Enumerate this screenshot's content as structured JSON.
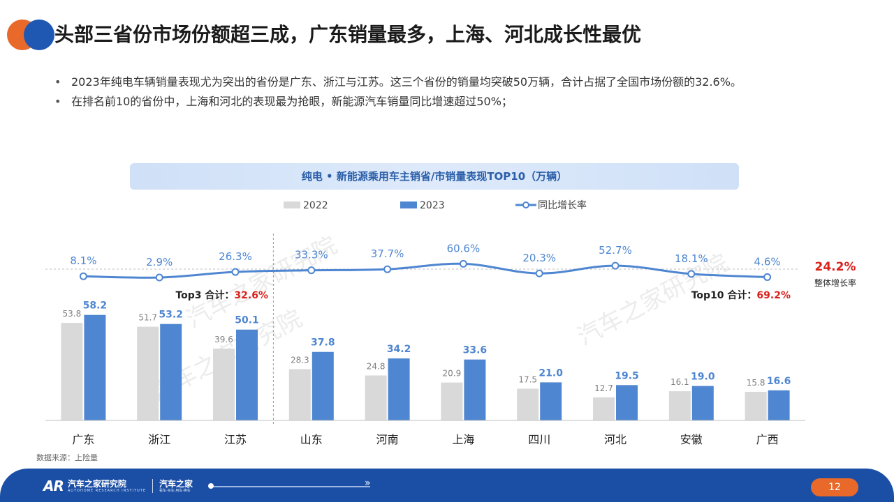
{
  "header": {
    "title": "头部三省份市场份额超三成，广东销量最多，上海、河北成长性最优"
  },
  "bullets": [
    "2023年纯电车辆销量表现尤为突出的省份是广东、浙江与江苏。这三个省份的销量均突破50万辆，合计占据了全国市场份额的32.6%。",
    "在排名前10的省份中，上海和河北的表现最为抢眼，新能源汽车销量同比增速超过50%；"
  ],
  "chart_data": {
    "type": "bar",
    "title": "纯电 • 新能源乘用车主销省/市销量表现TOP10（万辆）",
    "categories": [
      "广东",
      "浙江",
      "江苏",
      "山东",
      "河南",
      "上海",
      "四川",
      "河北",
      "安徽",
      "广西"
    ],
    "series": [
      {
        "name": "2022",
        "type": "bar",
        "color": "#d9d9d9",
        "values": [
          53.8,
          51.7,
          39.6,
          28.3,
          24.8,
          20.9,
          17.5,
          12.7,
          16.1,
          15.8
        ]
      },
      {
        "name": "2023",
        "type": "bar",
        "color": "#4f86d1",
        "values": [
          58.2,
          53.2,
          50.1,
          37.8,
          34.2,
          33.6,
          21.0,
          19.5,
          19.0,
          16.6
        ]
      },
      {
        "name": "同比增长率",
        "type": "line",
        "color": "#4f86d1",
        "values": [
          8.1,
          2.9,
          26.3,
          33.3,
          37.7,
          60.6,
          20.3,
          52.7,
          18.1,
          4.6
        ],
        "labels": [
          "8.1%",
          "2.9%",
          "26.3%",
          "33.3%",
          "37.7%",
          "60.6%",
          "20.3%",
          "52.7%",
          "18.1%",
          "4.6%"
        ]
      }
    ],
    "overall_growth": {
      "value": "24.2%",
      "label": "整体增长率"
    },
    "annotations": [
      {
        "label": "Top3 合计：",
        "value": "32.6%"
      },
      {
        "label": "Top10 合计：",
        "value": "69.2%"
      }
    ],
    "legend_position": "top",
    "grid": false,
    "watermark": [
      "汽车之家研究院",
      "汽车之家研究院",
      "汽车之家研究院"
    ]
  },
  "source": "数据来源：上险量",
  "footer": {
    "brand_mark": "AR",
    "org_cn": "汽车之家研究院",
    "org_en": "AUTOHOME RESEARCH INSTITUTE",
    "org2_cn": "汽车之家",
    "org2_sub": "看车·买车·用车·换车",
    "page_number": "12"
  }
}
